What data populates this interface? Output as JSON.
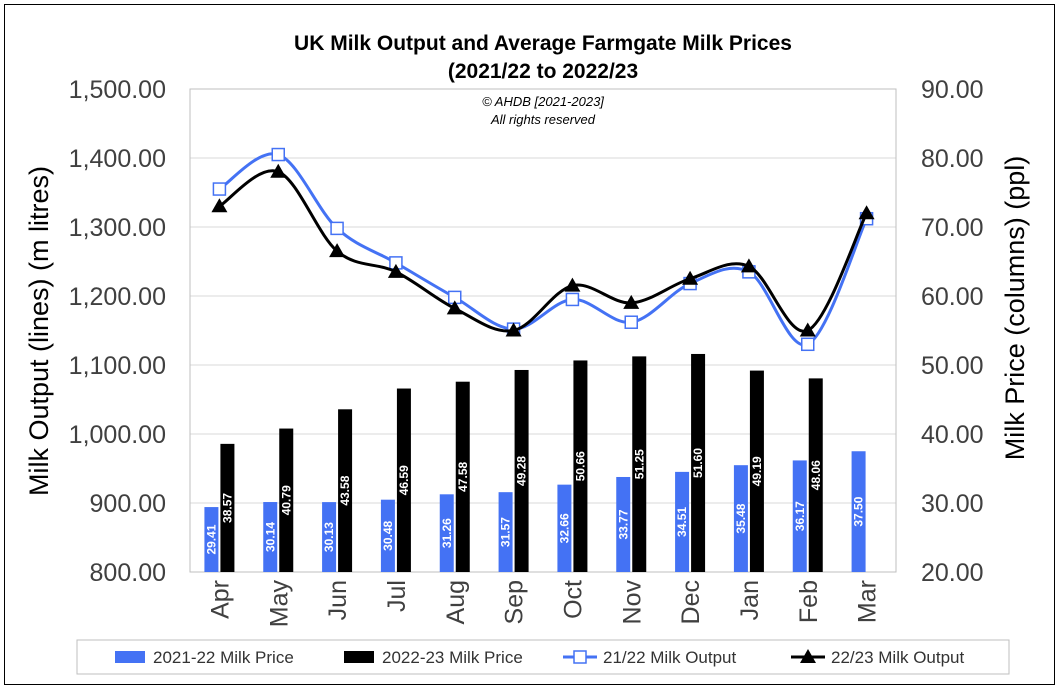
{
  "chart_data": {
    "type": "bar",
    "title": "UK Milk Output and Average Farmgate Milk Prices",
    "subtitle": "(2021/22 to 2022/23",
    "copyright": "© AHDB [2021-2023]",
    "rights": "All rights reserved",
    "ylabel_left": "Milk Output (lines) (m litres)",
    "ylabel_right": "Milk Price (columns) (ppl)",
    "ylim_left": [
      800,
      1500
    ],
    "ylim_right": [
      20,
      90
    ],
    "yticks_left": [
      "800.00",
      "900.00",
      "1,000.00",
      "1,100.00",
      "1,200.00",
      "1,300.00",
      "1,400.00",
      "1,500.00"
    ],
    "yticks_right": [
      "20.00",
      "30.00",
      "40.00",
      "50.00",
      "60.00",
      "70.00",
      "80.00",
      "90.00"
    ],
    "categories": [
      "Apr",
      "May",
      "Jun",
      "Jul",
      "Aug",
      "Sep",
      "Oct",
      "Nov",
      "Dec",
      "Jan",
      "Feb",
      "Mar"
    ],
    "grid": "horizontal",
    "legend_position": "bottom",
    "series": [
      {
        "name": "2021-22 Milk Price",
        "kind": "bar",
        "axis": "right",
        "color": "#4472f4",
        "values": [
          29.41,
          30.14,
          30.13,
          30.48,
          31.26,
          31.57,
          32.66,
          33.77,
          34.51,
          35.48,
          36.17,
          37.5
        ],
        "labels": [
          "29.41",
          "30.14",
          "30.13",
          "30.48",
          "31.26",
          "31.57",
          "32.66",
          "33.77",
          "34.51",
          "35.48",
          "36.17",
          "37.50"
        ]
      },
      {
        "name": "2022-23 Milk Price",
        "kind": "bar",
        "axis": "right",
        "color": "#000000",
        "values": [
          38.57,
          40.79,
          43.58,
          46.59,
          47.58,
          49.28,
          50.66,
          51.25,
          51.6,
          49.19,
          48.06,
          null
        ],
        "labels": [
          "38.57",
          "40.79",
          "43.58",
          "46.59",
          "47.58",
          "49.28",
          "50.66",
          "51.25",
          "51.60",
          "49.19",
          "48.06",
          ""
        ]
      },
      {
        "name": "21/22 Milk Output",
        "kind": "line",
        "axis": "left",
        "color": "#4472f4",
        "marker": "open-square",
        "values": [
          1355,
          1405,
          1298,
          1248,
          1198,
          1152,
          1195,
          1162,
          1218,
          1235,
          1130,
          1312
        ]
      },
      {
        "name": "22/23 Milk Output",
        "kind": "line",
        "axis": "left",
        "color": "#000000",
        "marker": "triangle",
        "values": [
          1330,
          1380,
          1265,
          1235,
          1182,
          1150,
          1215,
          1190,
          1225,
          1243,
          1150,
          1320
        ]
      }
    ]
  }
}
